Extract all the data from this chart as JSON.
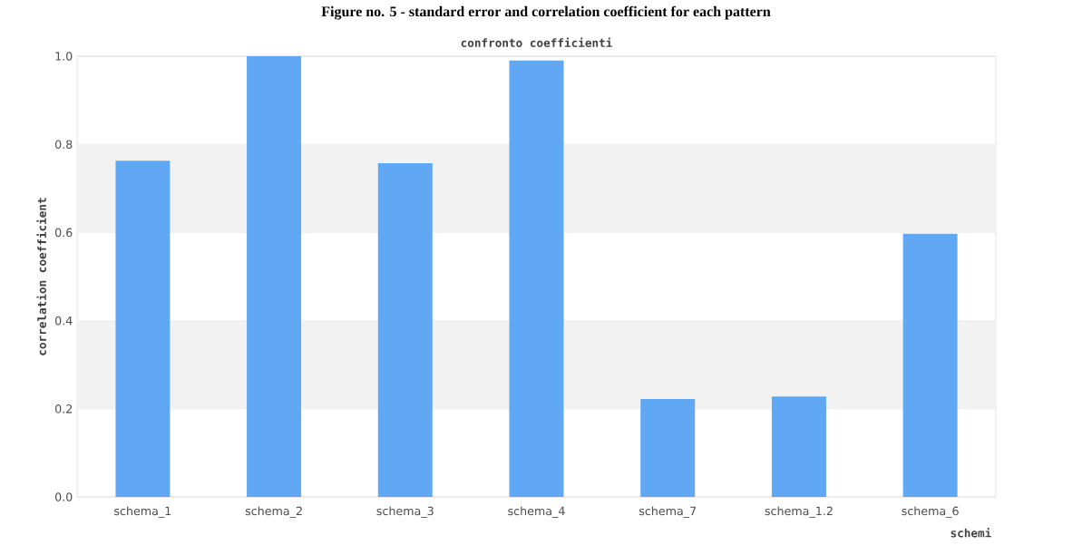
{
  "chart_data": {
    "type": "bar",
    "title": "confronto coefficienti",
    "annotations": [
      "Figure no.  5 - standard error and correlation coefficient for each pattern"
    ],
    "xlabel": "schemi",
    "ylabel": "correlation coefficient",
    "categories": [
      "schema_1",
      "schema_2",
      "schema_3",
      "schema_4",
      "schema_7",
      "schema_1.2",
      "schema_6"
    ],
    "values": [
      0.763,
      1.0,
      0.757,
      0.99,
      0.222,
      0.228,
      0.597
    ],
    "color": "#60a8f4",
    "ylim": [
      0,
      1.0
    ],
    "yticks": [
      {
        "value": 0,
        "label": "0.0"
      },
      {
        "value": 0.2,
        "label": "0.2"
      },
      {
        "value": 0.4,
        "label": "0.4"
      },
      {
        "value": 0.6,
        "label": "0.6"
      },
      {
        "value": 0.8,
        "label": "0.8"
      },
      {
        "value": 1.0,
        "label": "1.0"
      }
    ],
    "grid": "y"
  }
}
